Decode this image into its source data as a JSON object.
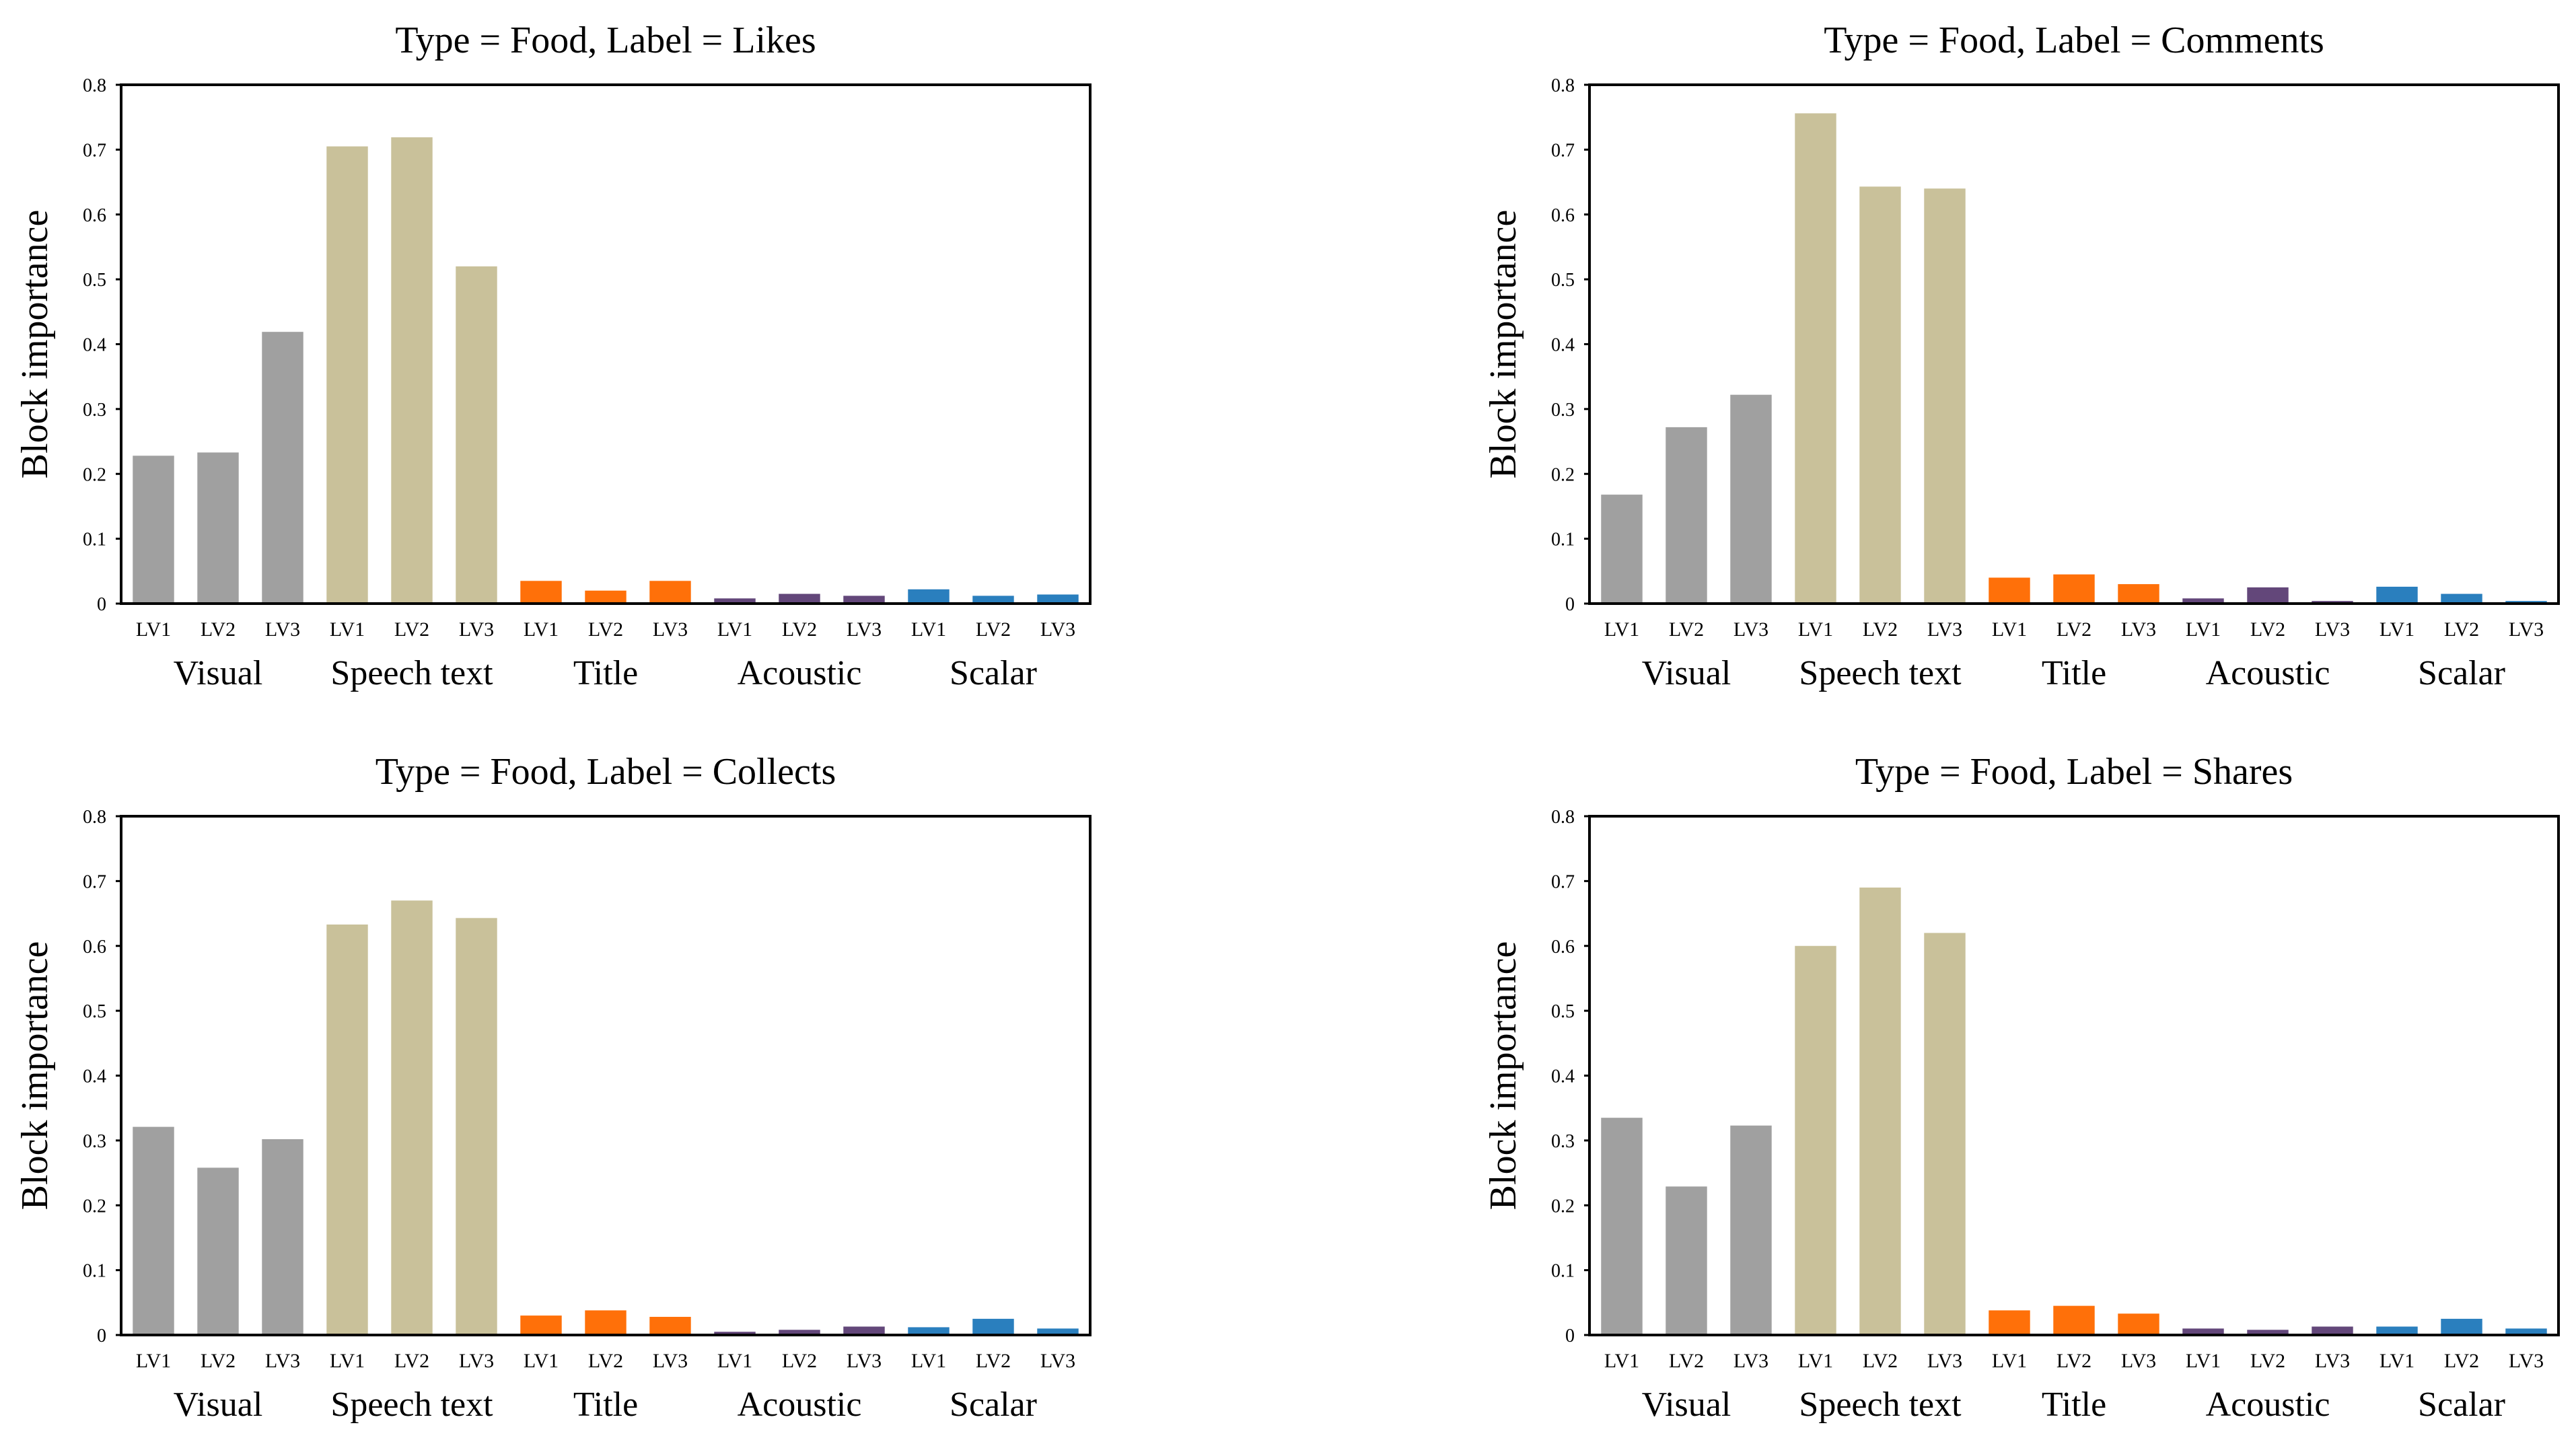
{
  "colors": {
    "Visual": "#a0a0a0",
    "Speech text": "#c9c19a",
    "Title": "#ff7009",
    "Acoustic": "#63477a",
    "Scalar": "#2a7fbe"
  },
  "chart_data": [
    {
      "type": "bar",
      "title": "Type = Food, Label = Likes",
      "ylabel": "Block importance",
      "xlabel": "",
      "ylim": [
        0,
        0.8
      ],
      "yticks": [
        "0",
        "0.1",
        "0.2",
        "0.3",
        "0.4",
        "0.5",
        "0.6",
        "0.7",
        "0.8"
      ],
      "groups": [
        "Visual",
        "Speech text",
        "Title",
        "Acoustic",
        "Scalar"
      ],
      "categories": [
        "LV1",
        "LV2",
        "LV3"
      ],
      "values": [
        [
          0.228,
          0.233,
          0.419
        ],
        [
          0.705,
          0.719,
          0.52
        ],
        [
          0.035,
          0.02,
          0.035
        ],
        [
          0.008,
          0.015,
          0.012
        ],
        [
          0.022,
          0.012,
          0.014
        ]
      ]
    },
    {
      "type": "bar",
      "title": "Type = Food, Label = Comments",
      "ylabel": "Block importance",
      "xlabel": "",
      "ylim": [
        0,
        0.8
      ],
      "yticks": [
        "0",
        "0.1",
        "0.2",
        "0.3",
        "0.4",
        "0.5",
        "0.6",
        "0.7",
        "0.8"
      ],
      "groups": [
        "Visual",
        "Speech text",
        "Title",
        "Acoustic",
        "Scalar"
      ],
      "categories": [
        "LV1",
        "LV2",
        "LV3"
      ],
      "values": [
        [
          0.168,
          0.272,
          0.322
        ],
        [
          0.756,
          0.643,
          0.64
        ],
        [
          0.04,
          0.045,
          0.03
        ],
        [
          0.008,
          0.025,
          0.004
        ],
        [
          0.026,
          0.015,
          0.004
        ]
      ]
    },
    {
      "type": "bar",
      "title": "Type = Food, Label = Collects",
      "ylabel": "Block importance",
      "xlabel": "",
      "ylim": [
        0,
        0.8
      ],
      "yticks": [
        "0",
        "0.1",
        "0.2",
        "0.3",
        "0.4",
        "0.5",
        "0.6",
        "0.7",
        "0.8"
      ],
      "groups": [
        "Visual",
        "Speech text",
        "Title",
        "Acoustic",
        "Scalar"
      ],
      "categories": [
        "LV1",
        "LV2",
        "LV3"
      ],
      "values": [
        [
          0.321,
          0.258,
          0.302
        ],
        [
          0.633,
          0.67,
          0.643
        ],
        [
          0.03,
          0.038,
          0.028
        ],
        [
          0.005,
          0.008,
          0.013
        ],
        [
          0.012,
          0.025,
          0.01
        ]
      ]
    },
    {
      "type": "bar",
      "title": "Type = Food, Label = Shares",
      "ylabel": "Block importance",
      "xlabel": "",
      "ylim": [
        0,
        0.8
      ],
      "yticks": [
        "0",
        "0.1",
        "0.2",
        "0.3",
        "0.4",
        "0.5",
        "0.6",
        "0.7",
        "0.8"
      ],
      "groups": [
        "Visual",
        "Speech text",
        "Title",
        "Acoustic",
        "Scalar"
      ],
      "categories": [
        "LV1",
        "LV2",
        "LV3"
      ],
      "values": [
        [
          0.335,
          0.229,
          0.323
        ],
        [
          0.6,
          0.69,
          0.62
        ],
        [
          0.038,
          0.045,
          0.033
        ],
        [
          0.01,
          0.008,
          0.013
        ],
        [
          0.013,
          0.025,
          0.01
        ]
      ]
    }
  ]
}
